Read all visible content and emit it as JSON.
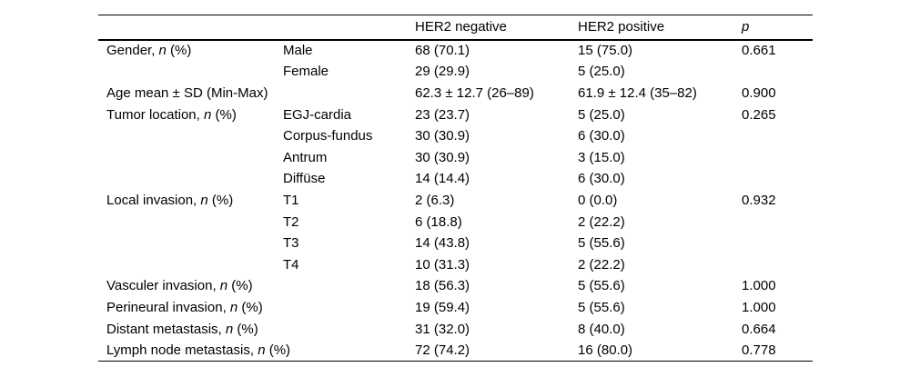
{
  "page": {
    "background_color": "#ffffff",
    "text_color": "#000000",
    "rule_color": "#000000"
  },
  "table": {
    "headers": {
      "col1": "",
      "col2": "",
      "her2_negative": "HER2 negative",
      "her2_positive": "HER2 positive",
      "p": "p"
    },
    "rows": [
      {
        "pre": "Gender, ",
        "it": "n",
        "post": " (%)",
        "sub": "Male",
        "neg": "68 (70.1)",
        "pos": "15 (75.0)",
        "p": "0.661"
      },
      {
        "pre": "",
        "it": "",
        "post": "",
        "sub": "Female",
        "neg": "29 (29.9)",
        "pos": "5 (25.0)",
        "p": ""
      },
      {
        "pre": "Age mean ± SD (Min-Max)",
        "it": "",
        "post": "",
        "sub": "",
        "neg": "62.3 ± 12.7 (26–89)",
        "pos": "61.9 ± 12.4 (35–82)",
        "p": "0.900"
      },
      {
        "pre": "Tumor location, ",
        "it": "n",
        "post": " (%)",
        "sub": "EGJ-cardia",
        "neg": "23 (23.7)",
        "pos": "5 (25.0)",
        "p": "0.265"
      },
      {
        "pre": "",
        "it": "",
        "post": "",
        "sub": "Corpus-fundus",
        "neg": "30 (30.9)",
        "pos": "6 (30.0)",
        "p": ""
      },
      {
        "pre": "",
        "it": "",
        "post": "",
        "sub": "Antrum",
        "neg": "30 (30.9)",
        "pos": "3 (15.0)",
        "p": ""
      },
      {
        "pre": "",
        "it": "",
        "post": "",
        "sub": "Diffüse",
        "neg": "14 (14.4)",
        "pos": "6 (30.0)",
        "p": ""
      },
      {
        "pre": "Local invasion, ",
        "it": "n",
        "post": " (%)",
        "sub": "T1",
        "neg": "2 (6.3)",
        "pos": "0 (0.0)",
        "p": "0.932"
      },
      {
        "pre": "",
        "it": "",
        "post": "",
        "sub": "T2",
        "neg": "6 (18.8)",
        "pos": "2 (22.2)",
        "p": ""
      },
      {
        "pre": "",
        "it": "",
        "post": "",
        "sub": "T3",
        "neg": "14 (43.8)",
        "pos": "5 (55.6)",
        "p": ""
      },
      {
        "pre": "",
        "it": "",
        "post": "",
        "sub": "T4",
        "neg": "10 (31.3)",
        "pos": "2 (22.2)",
        "p": ""
      },
      {
        "pre": "Vasculer invasion, ",
        "it": "n",
        "post": " (%)",
        "sub": "",
        "neg": "18 (56.3)",
        "pos": "5 (55.6)",
        "p": "1.000"
      },
      {
        "pre": "Perineural invasion, ",
        "it": "n",
        "post": " (%)",
        "sub": "",
        "neg": "19 (59.4)",
        "pos": "5 (55.6)",
        "p": "1.000"
      },
      {
        "pre": "Distant metastasis, ",
        "it": "n",
        "post": " (%)",
        "sub": "",
        "neg": "31 (32.0)",
        "pos": "8 (40.0)",
        "p": "0.664"
      },
      {
        "pre": "Lymph node metastasis, ",
        "it": "n",
        "post": " (%)",
        "sub": "",
        "neg": "72 (74.2)",
        "pos": "16 (80.0)",
        "p": "0.778"
      }
    ]
  }
}
